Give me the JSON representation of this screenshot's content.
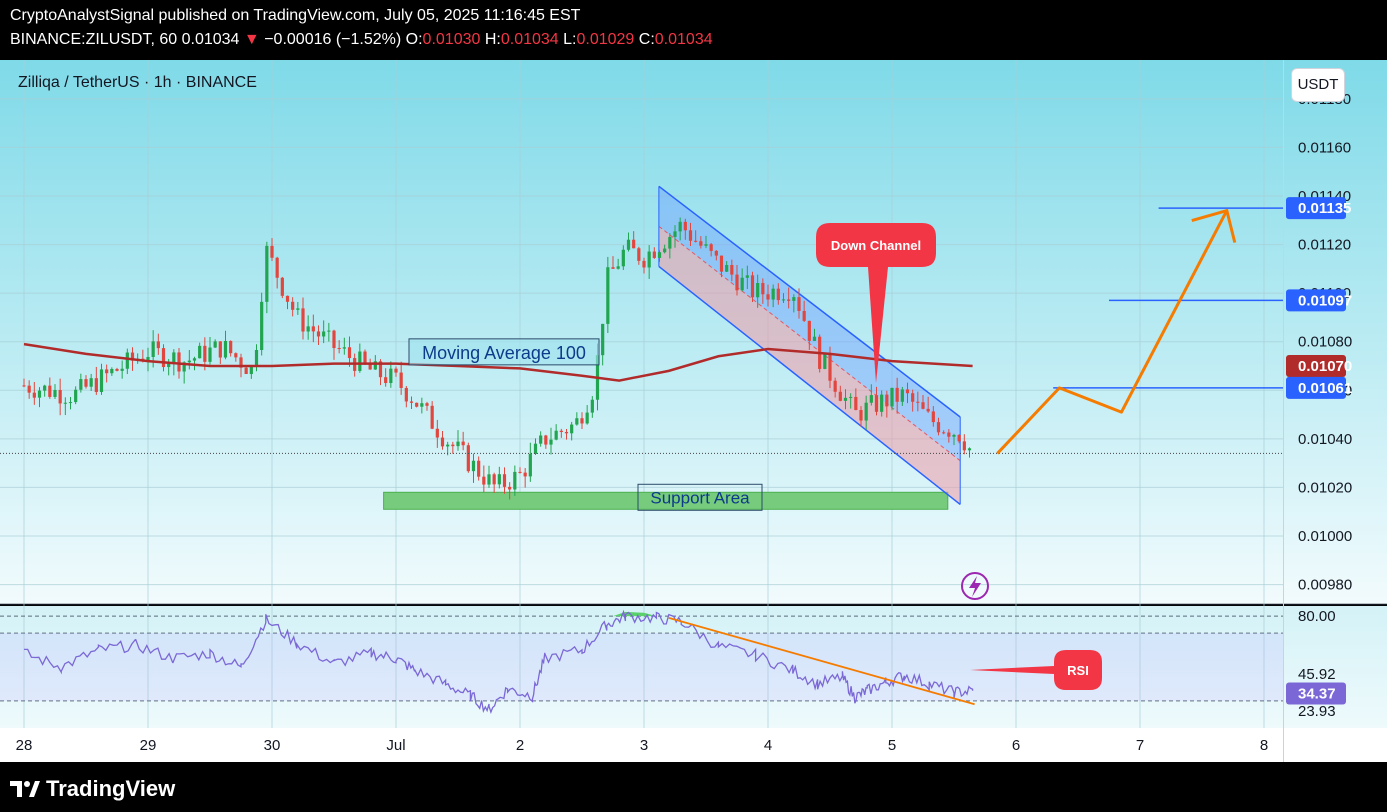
{
  "header": {
    "line1": "CryptoAnalystSignal published on TradingView.com, July 05, 2025 11:16:45 EST",
    "pair": "BINANCE:ZILUSDT, 60",
    "last": "0.01034",
    "change_arrow": "▼",
    "change": "−0.00016 (−1.52%)",
    "o_label": "O:",
    "o": "0.01030",
    "h_label": "H:",
    "h": "0.01034",
    "l_label": "L:",
    "l": "0.01029",
    "c_label": "C:",
    "c": "0.01034"
  },
  "symbol_title": "Zilliqa / TetherUS · 1h · BINANCE",
  "currency_button": "USDT",
  "footer": {
    "brand": "TradingView",
    "logo_icon": "tradingview-logo-icon"
  },
  "colors": {
    "background_top": "#7fdae8",
    "background_bottom": "#f2fbfd",
    "bull": "#22a550",
    "bear": "#e2473f",
    "ma": "#b22b2b",
    "channel": "#2962ff",
    "rsi": "#7b68d6",
    "orange": "#f57c00",
    "callout": "#f23645",
    "support": "#76cc7c",
    "lightning": "#9c27b0"
  },
  "chart_data": {
    "type": "candlestick",
    "symbol": "ZILUSDT",
    "interval": "1h",
    "x_ticks": [
      "28",
      "29",
      "30",
      "Jul",
      "2",
      "3",
      "4",
      "5",
      "6",
      "7",
      "8"
    ],
    "y_ticks": [
      "0.01180",
      "0.01160",
      "0.01140",
      "0.01120",
      "0.01100",
      "0.01080",
      "0.01060",
      "0.01040",
      "0.01020",
      "0.01000",
      "0.00980"
    ],
    "y_range": [
      0.00972,
      0.01196
    ],
    "price_labels": [
      {
        "value": "0.01135",
        "color": "#2962ff"
      },
      {
        "value": "0.01097",
        "color": "#2962ff"
      },
      {
        "value": "0.01070",
        "color": "#b22b2b"
      },
      {
        "value": "0.01061",
        "color": "#2962ff"
      }
    ],
    "last_price": 0.01034,
    "key_close_path": [
      [
        28.0,
        0.01062
      ],
      [
        28.4,
        0.01058
      ],
      [
        28.8,
        0.0107
      ],
      [
        29.0,
        0.01076
      ],
      [
        29.3,
        0.01072
      ],
      [
        29.6,
        0.01078
      ],
      [
        29.85,
        0.01068
      ],
      [
        29.95,
        0.01118
      ],
      [
        30.2,
        0.0109
      ],
      [
        30.5,
        0.01078
      ],
      [
        30.8,
        0.01068
      ],
      [
        31.0,
        0.01064
      ],
      [
        31.15,
        0.01056
      ],
      [
        31.4,
        0.0104
      ],
      [
        31.6,
        0.0103
      ],
      [
        31.8,
        0.0102
      ],
      [
        32.0,
        0.01025
      ],
      [
        32.2,
        0.0104
      ],
      [
        32.45,
        0.01046
      ],
      [
        32.6,
        0.01062
      ],
      [
        32.7,
        0.01105
      ],
      [
        32.85,
        0.01118
      ],
      [
        33.0,
        0.01115
      ],
      [
        33.3,
        0.01128
      ],
      [
        33.6,
        0.01112
      ],
      [
        33.9,
        0.011
      ],
      [
        34.2,
        0.01102
      ],
      [
        34.4,
        0.01075
      ],
      [
        34.7,
        0.0105
      ],
      [
        34.9,
        0.01055
      ],
      [
        35.1,
        0.01058
      ],
      [
        35.3,
        0.01048
      ],
      [
        35.55,
        0.01042
      ],
      [
        35.65,
        0.01034
      ]
    ],
    "moving_average": {
      "label": "Moving Average 100",
      "points": [
        [
          28.0,
          0.01079
        ],
        [
          28.5,
          0.01075
        ],
        [
          29.0,
          0.01072
        ],
        [
          29.5,
          0.0107
        ],
        [
          30.0,
          0.0107
        ],
        [
          30.5,
          0.01071
        ],
        [
          31.0,
          0.01071
        ],
        [
          31.5,
          0.0107
        ],
        [
          32.0,
          0.01069
        ],
        [
          32.5,
          0.01066
        ],
        [
          32.8,
          0.01064
        ],
        [
          33.2,
          0.01068
        ],
        [
          33.6,
          0.01074
        ],
        [
          34.0,
          0.01077
        ],
        [
          34.5,
          0.01075
        ],
        [
          35.0,
          0.01072
        ],
        [
          35.65,
          0.0107
        ]
      ]
    },
    "down_channel": {
      "label": "Down Channel",
      "upper": [
        [
          33.12,
          0.01144
        ],
        [
          35.55,
          0.01049
        ]
      ],
      "lower": [
        [
          33.12,
          0.01111
        ],
        [
          35.55,
          0.01013
        ]
      ]
    },
    "support_area": {
      "label": "Support Area",
      "from": 0.01011,
      "to": 0.01018,
      "x_start": 30.9,
      "x_end": 35.45
    },
    "levels": [
      {
        "value": 0.01135,
        "x_start": 37.15
      },
      {
        "value": 0.01097,
        "x_start": 36.75
      },
      {
        "value": 0.01061,
        "x_start": 36.3
      }
    ],
    "projection": [
      [
        35.85,
        0.01034
      ],
      [
        36.35,
        0.01061
      ],
      [
        36.85,
        0.01051
      ],
      [
        37.7,
        0.01134
      ]
    ],
    "rsi": {
      "label": "RSI",
      "tick_labels": [
        "80.00",
        "45.92",
        "23.93"
      ],
      "levels": [
        80.0,
        70.0,
        30.0
      ],
      "current": "34.37",
      "y_range": [
        14,
        86
      ],
      "points": [
        [
          28.0,
          58
        ],
        [
          28.3,
          50
        ],
        [
          28.6,
          60
        ],
        [
          28.9,
          63
        ],
        [
          29.2,
          55
        ],
        [
          29.5,
          58
        ],
        [
          29.75,
          50
        ],
        [
          29.95,
          78
        ],
        [
          30.2,
          64
        ],
        [
          30.5,
          52
        ],
        [
          30.8,
          58
        ],
        [
          31.0,
          55
        ],
        [
          31.15,
          48
        ],
        [
          31.4,
          40
        ],
        [
          31.6,
          33
        ],
        [
          31.75,
          25
        ],
        [
          31.9,
          37
        ],
        [
          32.1,
          33
        ],
        [
          32.2,
          55
        ],
        [
          32.5,
          60
        ],
        [
          32.7,
          75
        ],
        [
          32.85,
          80
        ],
        [
          33.1,
          79
        ],
        [
          33.3,
          77
        ],
        [
          33.6,
          62
        ],
        [
          33.9,
          57
        ],
        [
          34.2,
          48
        ],
        [
          34.4,
          40
        ],
        [
          34.6,
          44
        ],
        [
          34.7,
          32
        ],
        [
          34.8,
          36
        ],
        [
          34.95,
          41
        ],
        [
          35.1,
          45
        ],
        [
          35.3,
          40
        ],
        [
          35.5,
          35
        ],
        [
          35.65,
          36
        ]
      ],
      "trendline": [
        [
          33.2,
          79
        ],
        [
          35.65,
          28
        ]
      ]
    }
  }
}
